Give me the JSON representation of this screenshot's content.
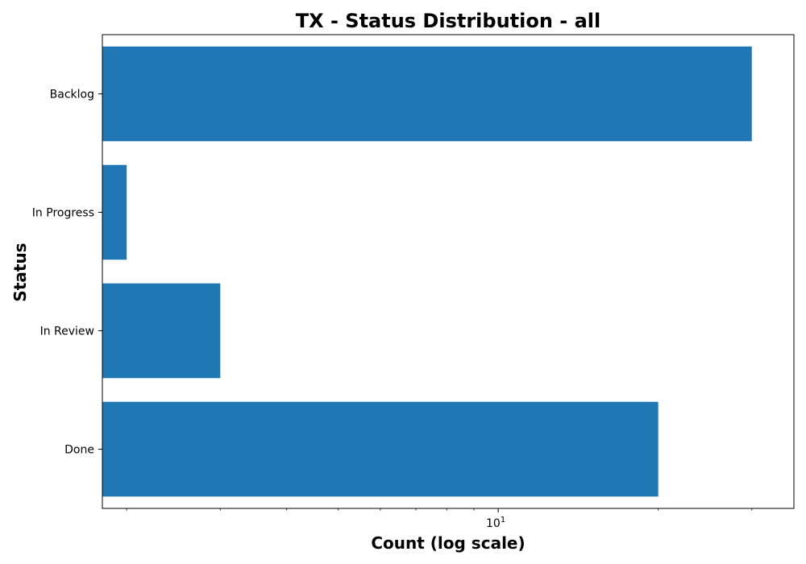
{
  "chart_data": {
    "type": "bar",
    "orientation": "horizontal",
    "title": "TX - Status Distribution - all",
    "xlabel": "Count (log scale)",
    "ylabel": "Status",
    "x_scale": "log",
    "xlim": [
      1.8,
      36
    ],
    "categories": [
      "Backlog",
      "In Progress",
      "In Review",
      "Done"
    ],
    "values": [
      30,
      2,
      3,
      20
    ],
    "x_major_ticks": [
      {
        "value": 10,
        "base": "10",
        "exponent": "1"
      }
    ],
    "x_minor_ticks": [
      2,
      3,
      4,
      5,
      6,
      7,
      8,
      9,
      20,
      30
    ],
    "grid": false,
    "legend": "none",
    "colors": {
      "bar": "#1f77b4",
      "axis": "#000000",
      "background": "#ffffff"
    }
  }
}
